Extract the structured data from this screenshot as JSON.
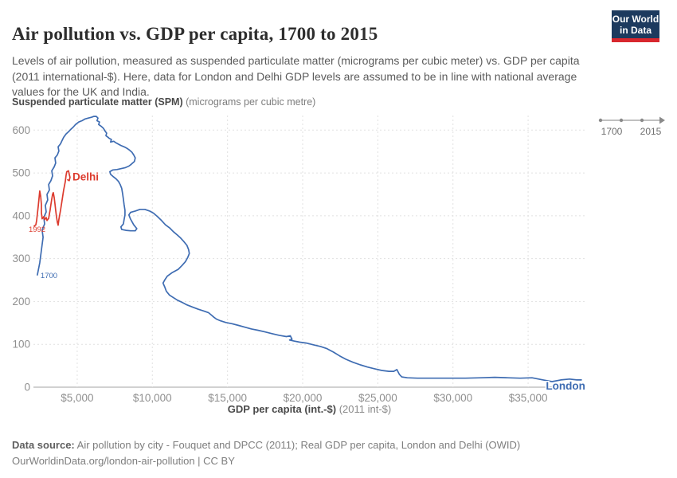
{
  "header": {
    "title": "Air pollution vs. GDP per capita, 1700 to 2015",
    "subtitle": "Levels of air pollution, measured as suspended particulate matter (micrograms per cubic meter) vs. GDP per capita (2011 international-$). Here, data for London and Delhi GDP levels are assumed to be in line with national average values for the UK and India.",
    "logo": {
      "line1": "Our World",
      "line2": "in Data"
    }
  },
  "timeline": {
    "start": "1700",
    "end": "2015"
  },
  "y_axis_title": {
    "main": "Suspended particulate matter (SPM)",
    "suffix": "(micrograms per cubic metre)"
  },
  "x_axis_title": {
    "main": "GDP per capita (int.-$)",
    "suffix": "(2011 int-$)"
  },
  "footer": {
    "source_label": "Data source:",
    "source_text": " Air pollution by city - Fouquet and DPCC (2011); Real GDP per capita, London and Delhi (OWID)",
    "link_line": "OurWorldinData.org/london-air-pollution | CC BY"
  },
  "chart_data": {
    "type": "line",
    "title": "Air pollution vs. GDP per capita, 1700 to 2015",
    "xlabel": "GDP per capita (int.-$) (2011 int-$)",
    "ylabel": "Suspended particulate matter (SPM), micrograms per cubic metre",
    "xlim": [
      2090,
      38810
    ],
    "ylim": [
      0,
      634
    ],
    "grid": true,
    "legend_position": "end-of-line-labels",
    "x_ticks": [
      5000,
      10000,
      15000,
      20000,
      25000,
      30000,
      35000
    ],
    "x_tick_labels": [
      "$5,000",
      "$10,000",
      "$15,000",
      "$20,000",
      "$25,000",
      "$30,000",
      "$35,000"
    ],
    "y_ticks": [
      0,
      100,
      200,
      300,
      400,
      500,
      600
    ],
    "series": [
      {
        "name": "London",
        "color": "#3e6cb2",
        "start_year": "1700",
        "end_year": "2015",
        "points": [
          [
            2350,
            262
          ],
          [
            2510,
            290
          ],
          [
            2620,
            320
          ],
          [
            2730,
            350
          ],
          [
            2670,
            366
          ],
          [
            2830,
            381
          ],
          [
            2780,
            396
          ],
          [
            2940,
            409
          ],
          [
            2880,
            424
          ],
          [
            3040,
            437
          ],
          [
            2990,
            450
          ],
          [
            3150,
            460
          ],
          [
            3100,
            473
          ],
          [
            3250,
            482
          ],
          [
            3360,
            493
          ],
          [
            3310,
            505
          ],
          [
            3470,
            514
          ],
          [
            3570,
            523
          ],
          [
            3520,
            535
          ],
          [
            3680,
            542
          ],
          [
            3780,
            551
          ],
          [
            3730,
            561
          ],
          [
            3890,
            568
          ],
          [
            4000,
            576
          ],
          [
            4100,
            583
          ],
          [
            4260,
            591
          ],
          [
            4420,
            596
          ],
          [
            4580,
            602
          ],
          [
            4740,
            607
          ],
          [
            4890,
            613
          ],
          [
            5110,
            619
          ],
          [
            5320,
            622
          ],
          [
            5530,
            626
          ],
          [
            5740,
            628
          ],
          [
            5950,
            630
          ],
          [
            6110,
            632
          ],
          [
            6270,
            632
          ],
          [
            6380,
            628
          ],
          [
            6320,
            622
          ],
          [
            6480,
            619
          ],
          [
            6430,
            613
          ],
          [
            6590,
            609
          ],
          [
            6750,
            604
          ],
          [
            6850,
            598
          ],
          [
            6960,
            593
          ],
          [
            6910,
            587
          ],
          [
            7060,
            583
          ],
          [
            7120,
            581
          ],
          [
            7280,
            578
          ],
          [
            7220,
            572
          ],
          [
            7430,
            574
          ],
          [
            7590,
            570
          ],
          [
            7910,
            564
          ],
          [
            8120,
            561
          ],
          [
            8330,
            557
          ],
          [
            8490,
            553
          ],
          [
            8650,
            548
          ],
          [
            8760,
            542
          ],
          [
            8860,
            535
          ],
          [
            8810,
            527
          ],
          [
            8590,
            520
          ],
          [
            8440,
            516
          ],
          [
            8180,
            512
          ],
          [
            7910,
            510
          ],
          [
            7650,
            508
          ],
          [
            7380,
            507
          ],
          [
            7170,
            503
          ],
          [
            7220,
            497
          ],
          [
            7380,
            492
          ],
          [
            7590,
            486
          ],
          [
            7750,
            480
          ],
          [
            7860,
            473
          ],
          [
            7960,
            464
          ],
          [
            8020,
            452
          ],
          [
            8070,
            439
          ],
          [
            8120,
            426
          ],
          [
            8180,
            413
          ],
          [
            8180,
            402
          ],
          [
            8120,
            391
          ],
          [
            8070,
            381
          ],
          [
            7910,
            374
          ],
          [
            7960,
            368
          ],
          [
            8230,
            366
          ],
          [
            8550,
            365
          ],
          [
            8860,
            365
          ],
          [
            8970,
            370
          ],
          [
            8760,
            379
          ],
          [
            8540,
            393
          ],
          [
            8440,
            402
          ],
          [
            8550,
            408
          ],
          [
            8860,
            411
          ],
          [
            9180,
            415
          ],
          [
            9500,
            415
          ],
          [
            9820,
            411
          ],
          [
            10080,
            406
          ],
          [
            10340,
            398
          ],
          [
            10610,
            389
          ],
          [
            10870,
            379
          ],
          [
            11140,
            372
          ],
          [
            11400,
            363
          ],
          [
            11670,
            355
          ],
          [
            11880,
            348
          ],
          [
            12090,
            340
          ],
          [
            12300,
            331
          ],
          [
            12410,
            321
          ],
          [
            12460,
            312
          ],
          [
            12360,
            303
          ],
          [
            12200,
            293
          ],
          [
            11980,
            284
          ],
          [
            11720,
            275
          ],
          [
            11300,
            267
          ],
          [
            10990,
            259
          ],
          [
            10820,
            250
          ],
          [
            10710,
            243
          ],
          [
            10820,
            234
          ],
          [
            10930,
            224
          ],
          [
            11140,
            215
          ],
          [
            11400,
            209
          ],
          [
            11670,
            203
          ],
          [
            11980,
            198
          ],
          [
            12300,
            192
          ],
          [
            12670,
            187
          ],
          [
            13040,
            182
          ],
          [
            13410,
            178
          ],
          [
            13730,
            174
          ],
          [
            13940,
            168
          ],
          [
            14100,
            163
          ],
          [
            14260,
            159
          ],
          [
            14520,
            155
          ],
          [
            14890,
            151
          ],
          [
            15320,
            148
          ],
          [
            15740,
            144
          ],
          [
            16160,
            140
          ],
          [
            16590,
            136
          ],
          [
            17010,
            133
          ],
          [
            17490,
            129
          ],
          [
            17960,
            125
          ],
          [
            18440,
            121
          ],
          [
            18920,
            118
          ],
          [
            19180,
            120
          ],
          [
            19290,
            112
          ],
          [
            19130,
            110
          ],
          [
            19390,
            108
          ],
          [
            19810,
            105
          ],
          [
            20240,
            103
          ],
          [
            20710,
            99
          ],
          [
            21190,
            95
          ],
          [
            21610,
            90
          ],
          [
            22040,
            82
          ],
          [
            22460,
            73
          ],
          [
            22880,
            65
          ],
          [
            23360,
            58
          ],
          [
            23840,
            52
          ],
          [
            24310,
            47
          ],
          [
            24790,
            43
          ],
          [
            25260,
            39
          ],
          [
            25740,
            37
          ],
          [
            26060,
            37
          ],
          [
            26270,
            41
          ],
          [
            26430,
            30
          ],
          [
            26590,
            24
          ],
          [
            26960,
            22
          ],
          [
            27640,
            21
          ],
          [
            28700,
            21
          ],
          [
            29760,
            21
          ],
          [
            30820,
            21
          ],
          [
            31880,
            22
          ],
          [
            32780,
            23
          ],
          [
            33620,
            22
          ],
          [
            34470,
            21
          ],
          [
            35260,
            22
          ],
          [
            36000,
            17
          ],
          [
            36590,
            13
          ],
          [
            37170,
            17
          ],
          [
            37750,
            19
          ],
          [
            38230,
            17
          ],
          [
            38540,
            17
          ]
        ]
      },
      {
        "name": "Delhi",
        "color": "#dc3b2e",
        "start_year": "1992",
        "end_year": "2015",
        "points": [
          [
            2140,
            376
          ],
          [
            2250,
            379
          ],
          [
            2300,
            389
          ],
          [
            2350,
            404
          ],
          [
            2410,
            422
          ],
          [
            2460,
            441
          ],
          [
            2510,
            458
          ],
          [
            2570,
            445
          ],
          [
            2620,
            426
          ],
          [
            2620,
            407
          ],
          [
            2670,
            393
          ],
          [
            2780,
            398
          ],
          [
            2830,
            391
          ],
          [
            2940,
            396
          ],
          [
            2990,
            389
          ],
          [
            3100,
            394
          ],
          [
            3150,
            404
          ],
          [
            3200,
            413
          ],
          [
            3250,
            426
          ],
          [
            3310,
            439
          ],
          [
            3360,
            450
          ],
          [
            3410,
            454
          ],
          [
            3470,
            443
          ],
          [
            3520,
            428
          ],
          [
            3570,
            413
          ],
          [
            3620,
            398
          ],
          [
            3680,
            385
          ],
          [
            3730,
            378
          ],
          [
            3780,
            391
          ],
          [
            3890,
            413
          ],
          [
            4000,
            437
          ],
          [
            4100,
            460
          ],
          [
            4210,
            480
          ],
          [
            4260,
            495
          ],
          [
            4310,
            503
          ],
          [
            4420,
            505
          ],
          [
            4470,
            497
          ],
          [
            4520,
            490
          ],
          [
            4470,
            482
          ],
          [
            4370,
            484
          ]
        ]
      }
    ]
  }
}
